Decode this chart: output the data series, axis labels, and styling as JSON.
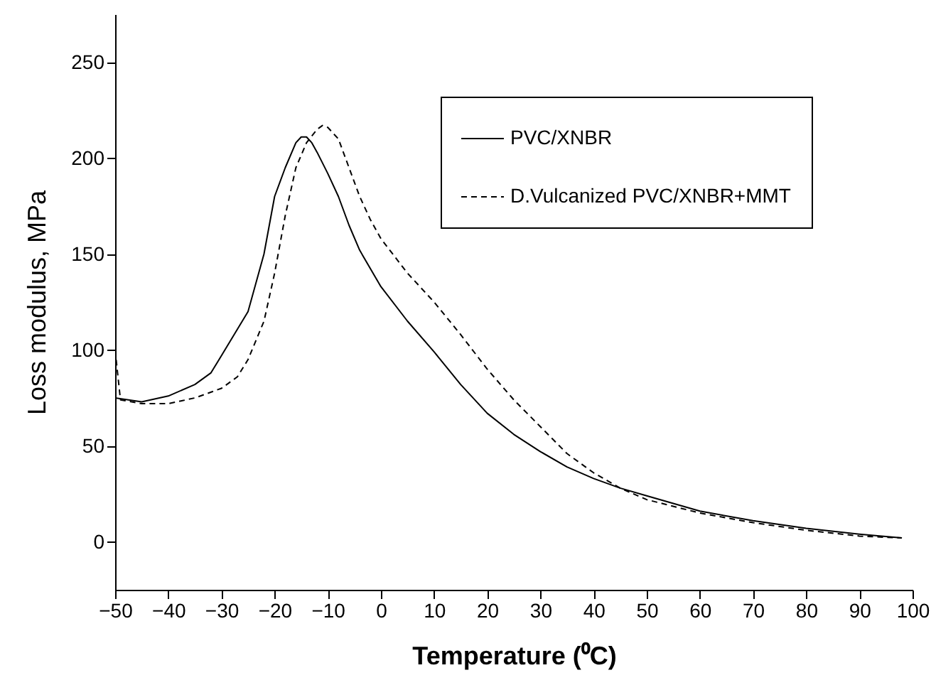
{
  "chart_data": {
    "type": "line",
    "xlabel": "Temperature (⁰C)",
    "ylabel": "Loss modulus, MPa",
    "xlim": [
      -50,
      100
    ],
    "xticks": [
      -50,
      -40,
      -30,
      -20,
      -10,
      0,
      10,
      20,
      30,
      40,
      50,
      60,
      70,
      80,
      90,
      100
    ],
    "ylim": [
      -25,
      275
    ],
    "yticks": [
      0,
      50,
      100,
      150,
      200,
      250
    ],
    "legend": "top right",
    "grid": false,
    "marker": "none",
    "series": [
      {
        "name": "PVC/XNBR",
        "color": "#000000",
        "line_style": "solid",
        "x": [
          -50,
          -45,
          -40,
          -35,
          -32,
          -30,
          -25,
          -22,
          -20,
          -18,
          -16,
          -15,
          -14,
          -13,
          -12,
          -10,
          -8,
          -6,
          -4,
          0,
          5,
          10,
          15,
          20,
          25,
          30,
          35,
          40,
          45,
          50,
          60,
          70,
          80,
          90,
          98
        ],
        "values": [
          75,
          73,
          76,
          82,
          88,
          97,
          120,
          150,
          180,
          195,
          208,
          211,
          211,
          208,
          203,
          192,
          180,
          165,
          152,
          133,
          115,
          99,
          82,
          67,
          56,
          47,
          39,
          33,
          28,
          24,
          16,
          11,
          7,
          4,
          2
        ]
      },
      {
        "name": "D.Vulcanized PVC/XNBR+MMT",
        "color": "#000000",
        "line_style": "dashed",
        "x": [
          -50,
          -49,
          -45,
          -40,
          -35,
          -30,
          -27,
          -25,
          -22,
          -20,
          -18,
          -16,
          -14,
          -12,
          -11,
          -10,
          -8,
          -6,
          -4,
          -2,
          0,
          5,
          10,
          15,
          20,
          25,
          30,
          35,
          40,
          45,
          50,
          60,
          70,
          80,
          90,
          98
        ],
        "values": [
          100,
          74,
          72,
          72,
          75,
          80,
          86,
          95,
          115,
          140,
          170,
          195,
          208,
          215,
          217,
          216,
          210,
          195,
          180,
          168,
          158,
          140,
          125,
          108,
          90,
          74,
          60,
          46,
          36,
          28,
          22,
          15,
          10,
          6,
          3,
          2
        ]
      }
    ]
  }
}
